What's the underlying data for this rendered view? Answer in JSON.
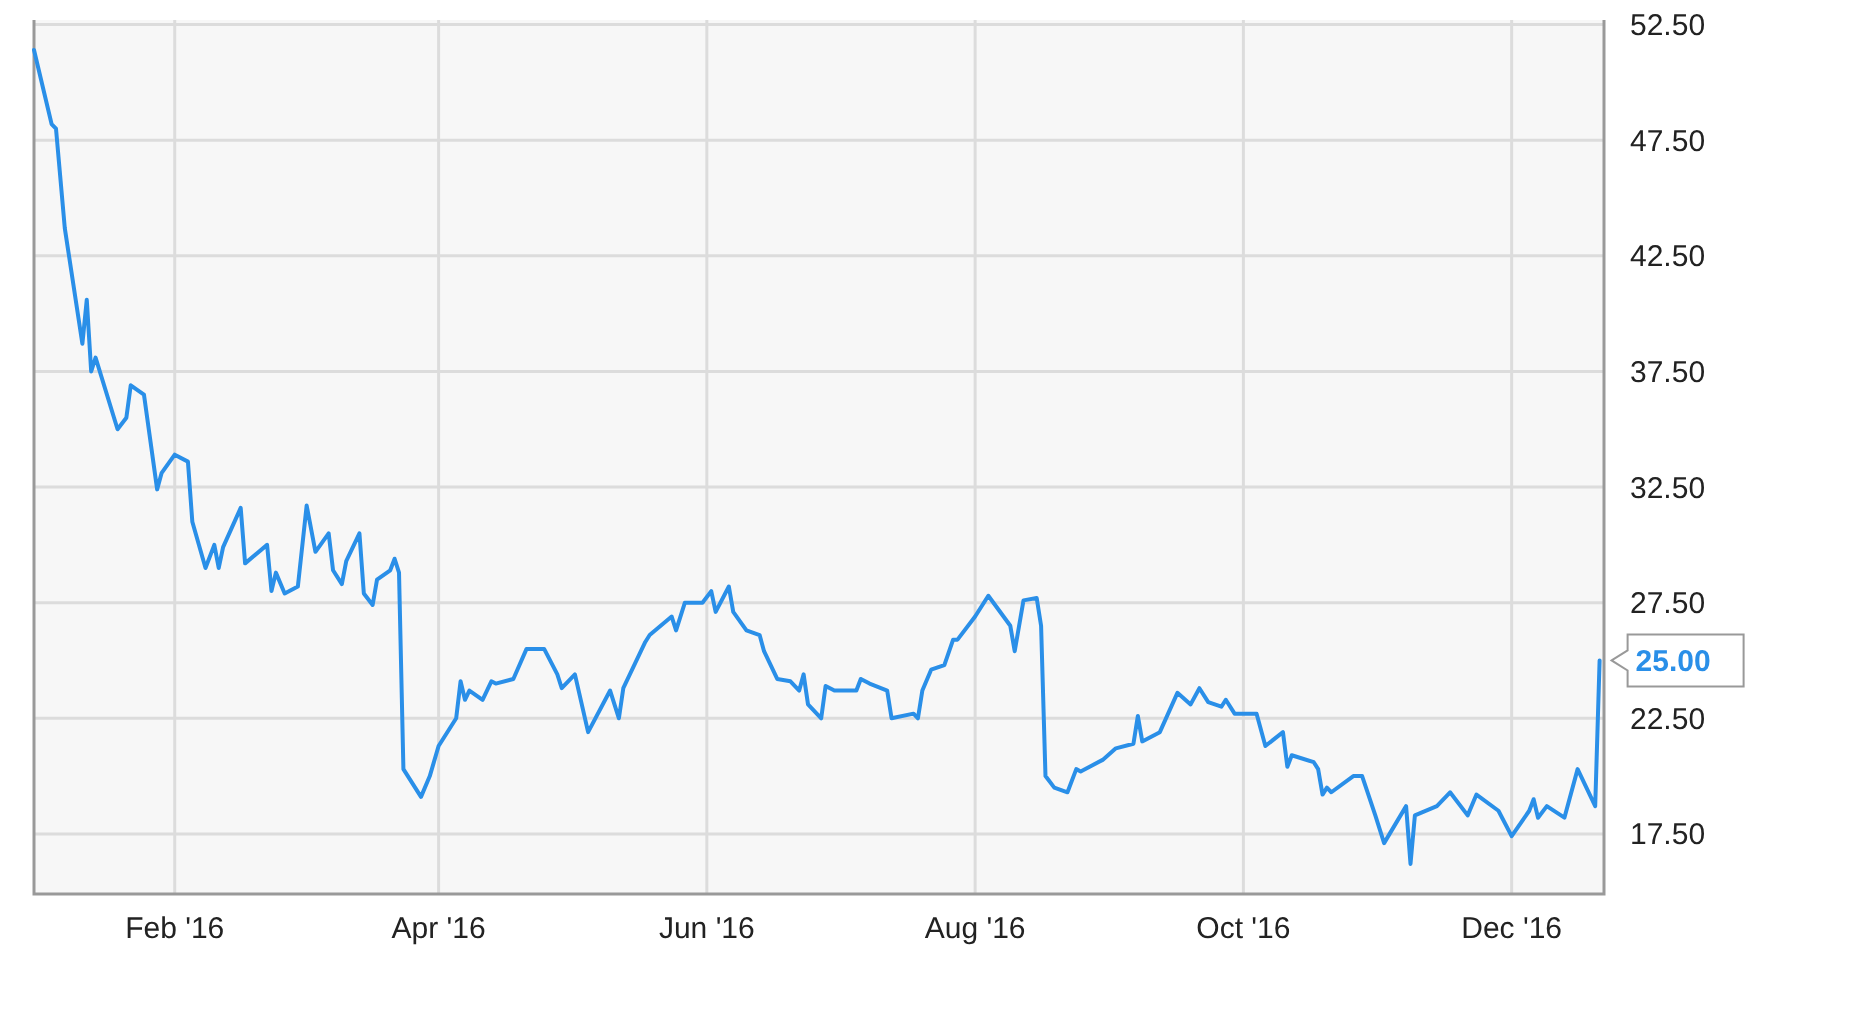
{
  "chart_data": {
    "type": "line",
    "x": [
      "2015-12-31",
      "2016-01-04",
      "2016-01-05",
      "2016-01-07",
      "2016-01-11",
      "2016-01-12",
      "2016-01-13",
      "2016-01-14",
      "2016-01-19",
      "2016-01-21",
      "2016-01-22",
      "2016-01-25",
      "2016-01-28",
      "2016-01-29",
      "2016-02-01",
      "2016-02-04",
      "2016-02-05",
      "2016-02-08",
      "2016-02-10",
      "2016-02-11",
      "2016-02-12",
      "2016-02-16",
      "2016-02-17",
      "2016-02-22",
      "2016-02-23",
      "2016-02-24",
      "2016-02-26",
      "2016-02-29",
      "2016-03-02",
      "2016-03-04",
      "2016-03-07",
      "2016-03-08",
      "2016-03-10",
      "2016-03-11",
      "2016-03-14",
      "2016-03-15",
      "2016-03-17",
      "2016-03-18",
      "2016-03-21",
      "2016-03-22",
      "2016-03-23",
      "2016-03-24",
      "2016-03-28",
      "2016-03-30",
      "2016-04-01",
      "2016-04-05",
      "2016-04-06",
      "2016-04-07",
      "2016-04-08",
      "2016-04-11",
      "2016-04-13",
      "2016-04-14",
      "2016-04-18",
      "2016-04-21",
      "2016-04-25",
      "2016-04-28",
      "2016-04-29",
      "2016-05-02",
      "2016-05-05",
      "2016-05-10",
      "2016-05-12",
      "2016-05-13",
      "2016-05-16",
      "2016-05-18",
      "2016-05-19",
      "2016-05-24",
      "2016-05-25",
      "2016-05-27",
      "2016-05-31",
      "2016-06-02",
      "2016-06-03",
      "2016-06-06",
      "2016-06-07",
      "2016-06-10",
      "2016-06-13",
      "2016-06-14",
      "2016-06-17",
      "2016-06-20",
      "2016-06-22",
      "2016-06-23",
      "2016-06-24",
      "2016-06-27",
      "2016-06-28",
      "2016-06-30",
      "2016-07-05",
      "2016-07-06",
      "2016-07-08",
      "2016-07-12",
      "2016-07-13",
      "2016-07-18",
      "2016-07-19",
      "2016-07-20",
      "2016-07-22",
      "2016-07-25",
      "2016-07-27",
      "2016-07-28",
      "2016-08-01",
      "2016-08-04",
      "2016-08-09",
      "2016-08-10",
      "2016-08-12",
      "2016-08-15",
      "2016-08-16",
      "2016-08-17",
      "2016-08-19",
      "2016-08-22",
      "2016-08-24",
      "2016-08-25",
      "2016-08-30",
      "2016-09-02",
      "2016-09-06",
      "2016-09-07",
      "2016-09-08",
      "2016-09-12",
      "2016-09-16",
      "2016-09-19",
      "2016-09-21",
      "2016-09-23",
      "2016-09-26",
      "2016-09-27",
      "2016-09-29",
      "2016-10-04",
      "2016-10-06",
      "2016-10-10",
      "2016-10-11",
      "2016-10-12",
      "2016-10-17",
      "2016-10-18",
      "2016-10-19",
      "2016-10-20",
      "2016-10-21",
      "2016-10-26",
      "2016-10-28",
      "2016-10-31",
      "2016-11-02",
      "2016-11-07",
      "2016-11-08",
      "2016-11-09",
      "2016-11-14",
      "2016-11-17",
      "2016-11-21",
      "2016-11-23",
      "2016-11-28",
      "2016-12-01",
      "2016-12-05",
      "2016-12-06",
      "2016-12-07",
      "2016-12-09",
      "2016-12-13",
      "2016-12-16",
      "2016-12-20",
      "2016-12-21"
    ],
    "series": [
      {
        "color": "#2a8fe8",
        "values": [
          51.4,
          48.2,
          48.0,
          43.7,
          38.7,
          40.6,
          37.5,
          38.1,
          35.0,
          35.5,
          36.9,
          36.5,
          32.4,
          33.1,
          33.9,
          33.6,
          31.0,
          29.0,
          30.0,
          29.0,
          29.9,
          31.6,
          29.2,
          30.0,
          28.0,
          28.8,
          27.9,
          28.2,
          31.7,
          29.7,
          30.5,
          28.9,
          28.3,
          29.3,
          30.5,
          27.9,
          27.4,
          28.5,
          28.9,
          29.4,
          28.8,
          20.3,
          19.1,
          20.0,
          21.3,
          22.5,
          24.1,
          23.3,
          23.7,
          23.3,
          24.1,
          24.0,
          24.2,
          25.5,
          25.5,
          24.4,
          23.8,
          24.4,
          21.9,
          23.7,
          22.5,
          23.8,
          25.0,
          25.8,
          26.1,
          26.9,
          26.3,
          27.5,
          27.5,
          28.0,
          27.1,
          28.2,
          27.1,
          26.3,
          26.1,
          25.4,
          24.2,
          24.1,
          23.7,
          24.4,
          23.1,
          22.5,
          23.9,
          23.7,
          23.7,
          24.2,
          24.0,
          23.7,
          22.5,
          22.7,
          22.5,
          23.7,
          24.6,
          24.8,
          25.9,
          25.9,
          26.9,
          27.8,
          26.5,
          25.4,
          27.6,
          27.7,
          26.5,
          20.0,
          19.5,
          19.3,
          20.3,
          20.2,
          20.7,
          21.2,
          21.4,
          22.6,
          21.5,
          21.9,
          23.6,
          23.1,
          23.8,
          23.2,
          23.0,
          23.3,
          22.7,
          22.7,
          21.3,
          21.9,
          20.4,
          20.9,
          20.6,
          20.3,
          19.2,
          19.5,
          19.3,
          20.0,
          20.0,
          18.3,
          17.1,
          18.7,
          16.2,
          18.3,
          18.7,
          19.3,
          18.3,
          19.2,
          18.5,
          17.4,
          18.5,
          19.0,
          18.2,
          18.7,
          18.2,
          20.3,
          18.7,
          25.0
        ]
      }
    ],
    "xlim": [
      "2015-12-31",
      "2016-12-22"
    ],
    "xticks": [
      {
        "value": "2016-02-01",
        "label": "Feb '16"
      },
      {
        "value": "2016-04-01",
        "label": "Apr '16"
      },
      {
        "value": "2016-06-01",
        "label": "Jun '16"
      },
      {
        "value": "2016-08-01",
        "label": "Aug '16"
      },
      {
        "value": "2016-10-01",
        "label": "Oct '16"
      },
      {
        "value": "2016-12-01",
        "label": "Dec '16"
      }
    ],
    "ylim": [
      14.9,
      52.7
    ],
    "yticks": [
      {
        "value": 17.5,
        "label": "17.50"
      },
      {
        "value": 22.5,
        "label": "22.50"
      },
      {
        "value": 27.5,
        "label": "27.50"
      },
      {
        "value": 32.5,
        "label": "32.50"
      },
      {
        "value": 37.5,
        "label": "37.50"
      },
      {
        "value": 42.5,
        "label": "42.50"
      },
      {
        "value": 47.5,
        "label": "47.50"
      },
      {
        "value": 52.5,
        "label": "52.50"
      }
    ],
    "grid": true,
    "line_style": "solid",
    "marker": "none",
    "annotations": [
      {
        "text": "25.00",
        "x": "2016-12-21",
        "y": 25
      }
    ]
  }
}
